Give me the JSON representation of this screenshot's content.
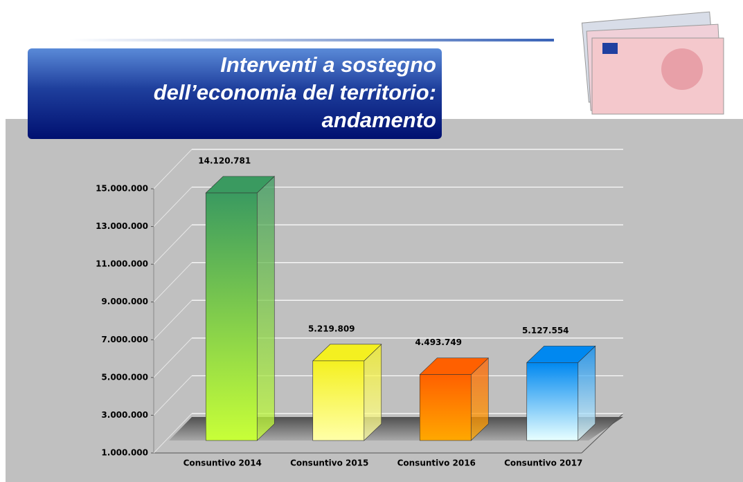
{
  "chart_data": {
    "type": "bar3d",
    "title": [
      "Interventi a sostegno",
      "dell’economia del territorio:",
      "andamento"
    ],
    "categories": [
      "Consuntivo 2014",
      "Consuntivo 2015",
      "Consuntivo 2016",
      "Consuntivo 2017"
    ],
    "values": [
      14120781,
      5219809,
      4493749,
      5127554
    ],
    "value_labels": [
      "14.120.781",
      "5.219.809",
      "4.493.749",
      "5.127.554"
    ],
    "colors": [
      [
        "#3a9a60",
        "#c8ff38"
      ],
      [
        "#f4f020",
        "#ffffa8"
      ],
      [
        "#ff6000",
        "#ffa800"
      ],
      [
        "#0088f0",
        "#e8ffff"
      ]
    ],
    "ylim": [
      1000000,
      15000000
    ],
    "yticks": [
      {
        "value": 1000000,
        "label": "1.000.000"
      },
      {
        "value": 3000000,
        "label": "3.000.000"
      },
      {
        "value": 5000000,
        "label": "5.000.000"
      },
      {
        "value": 7000000,
        "label": "7.000.000"
      },
      {
        "value": 9000000,
        "label": "9.000.000"
      },
      {
        "value": 11000000,
        "label": "11.000.000"
      },
      {
        "value": 13000000,
        "label": "13.000.000"
      },
      {
        "value": 15000000,
        "label": "15.000.000"
      }
    ],
    "grid": true
  }
}
